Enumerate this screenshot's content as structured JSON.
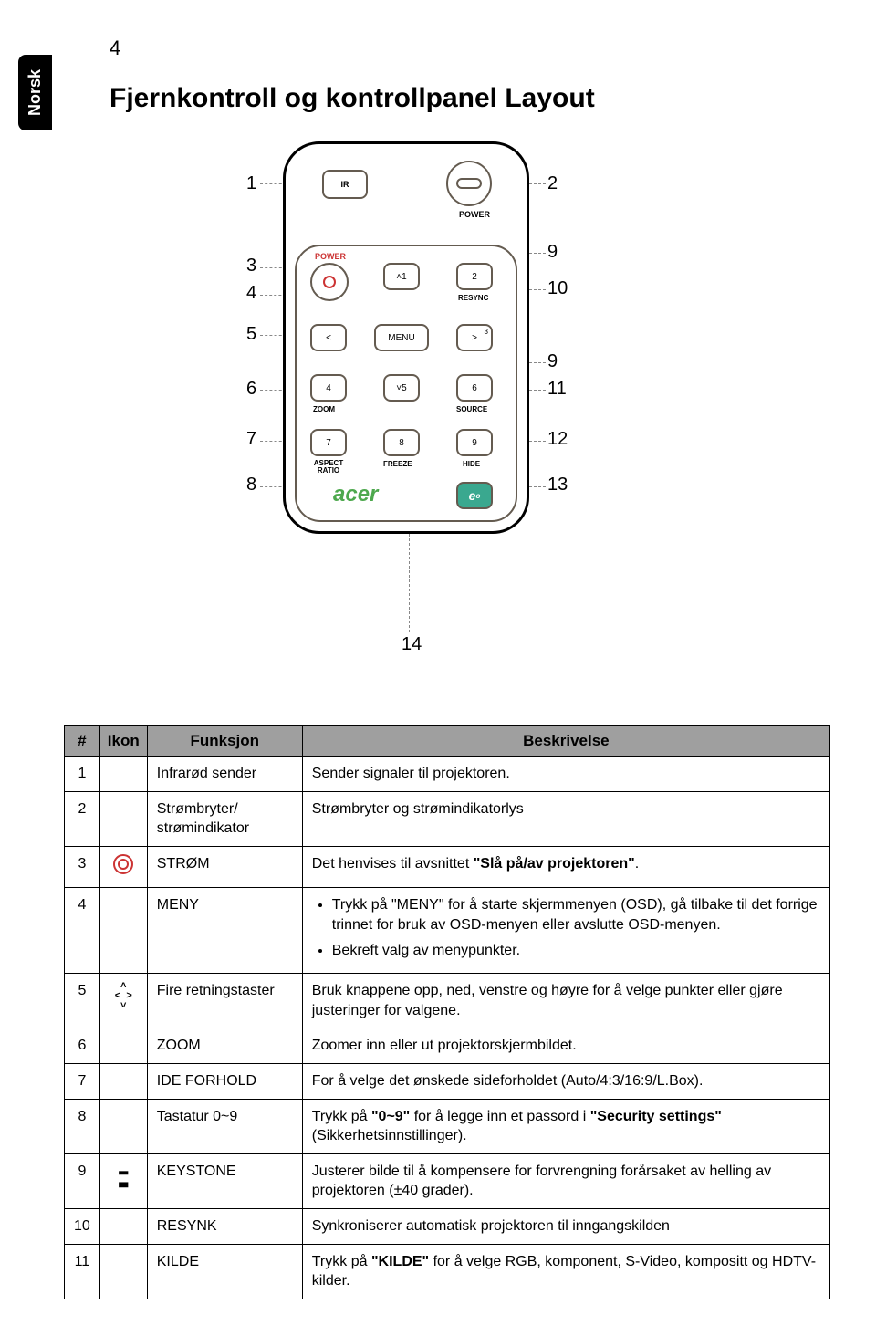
{
  "sidetab": "Norsk",
  "page_number": "4",
  "heading": "Fjernkontroll og kontrollpanel Layout",
  "remote": {
    "ir": "IR",
    "power_label": "POWER",
    "power_red": "POWER",
    "resync": "RESYNC",
    "menu": "MENU",
    "zoom": "ZOOM",
    "source": "SOURCE",
    "aspect": "ASPECT RATIO",
    "freeze": "FREEZE",
    "hide": "HIDE",
    "empower": "e",
    "acer": "acer",
    "keys": {
      "k1": "˄1",
      "k2": "2",
      "k3": "3",
      "k4": "4",
      "k5": "˅5",
      "k6": "6",
      "k7": "7",
      "k8": "8",
      "k9": "9",
      "lt": "<",
      "gt": ">"
    }
  },
  "callouts": {
    "c1": "1",
    "c2": "2",
    "c3": "3",
    "c4": "4",
    "c5": "5",
    "c6": "6",
    "c7": "7",
    "c8": "8",
    "c9": "9",
    "c10": "10",
    "c11": "11",
    "c12": "12",
    "c13": "13",
    "c14": "14"
  },
  "table": {
    "headers": {
      "num": "#",
      "icon": "Ikon",
      "func": "Funksjon",
      "desc": "Beskrivelse"
    },
    "rows": [
      {
        "n": "1",
        "icon": "",
        "func": "Infrarød sender",
        "desc": "Sender signaler til projektoren."
      },
      {
        "n": "2",
        "icon": "",
        "func": "Strømbryter/ strømindikator",
        "desc": "Strømbryter og strømindikatorlys"
      },
      {
        "n": "3",
        "icon": "power",
        "func": "STRØM",
        "desc": "Det henvises til avsnittet \"Slå på/av projektoren\"."
      },
      {
        "n": "4",
        "icon": "",
        "func": "MENY",
        "desc_list": [
          "Trykk på \"MENY\" for å starte skjermmenyen (OSD), gå tilbake til det forrige trinnet for bruk av OSD-menyen eller avslutte OSD-menyen.",
          "Bekreft valg av menypunkter."
        ]
      },
      {
        "n": "5",
        "icon": "dir",
        "func": "Fire retningstaster",
        "desc": "Bruk knappene opp, ned, venstre og høyre for å velge punkter eller gjøre justeringer for valgene."
      },
      {
        "n": "6",
        "icon": "",
        "func": "ZOOM",
        "desc": "Zoomer inn eller ut projektorskjermbildet."
      },
      {
        "n": "7",
        "icon": "",
        "func": "IDE FORHOLD",
        "desc": "For å velge det ønskede sideforholdet (Auto/4:3/16:9/L.Box)."
      },
      {
        "n": "8",
        "icon": "",
        "func": "Tastatur 0~9",
        "desc": "Trykk på \"0~9\" for å legge inn et passord i \"Security settings\" (Sikkerhetsinnstillinger)."
      },
      {
        "n": "9",
        "icon": "keystone",
        "func": "KEYSTONE",
        "desc": "Justerer bilde til å kompensere for forvrengning forårsaket av helling av projektoren (±40 grader)."
      },
      {
        "n": "10",
        "icon": "",
        "func": "RESYNK",
        "desc": "Synkroniserer automatisk projektoren til inngangskilden"
      },
      {
        "n": "11",
        "icon": "",
        "func": "KILDE",
        "desc": "Trykk på \"KILDE\" for å velge RGB, komponent, S-Video, kompositt og HDTV-kilder."
      }
    ]
  }
}
